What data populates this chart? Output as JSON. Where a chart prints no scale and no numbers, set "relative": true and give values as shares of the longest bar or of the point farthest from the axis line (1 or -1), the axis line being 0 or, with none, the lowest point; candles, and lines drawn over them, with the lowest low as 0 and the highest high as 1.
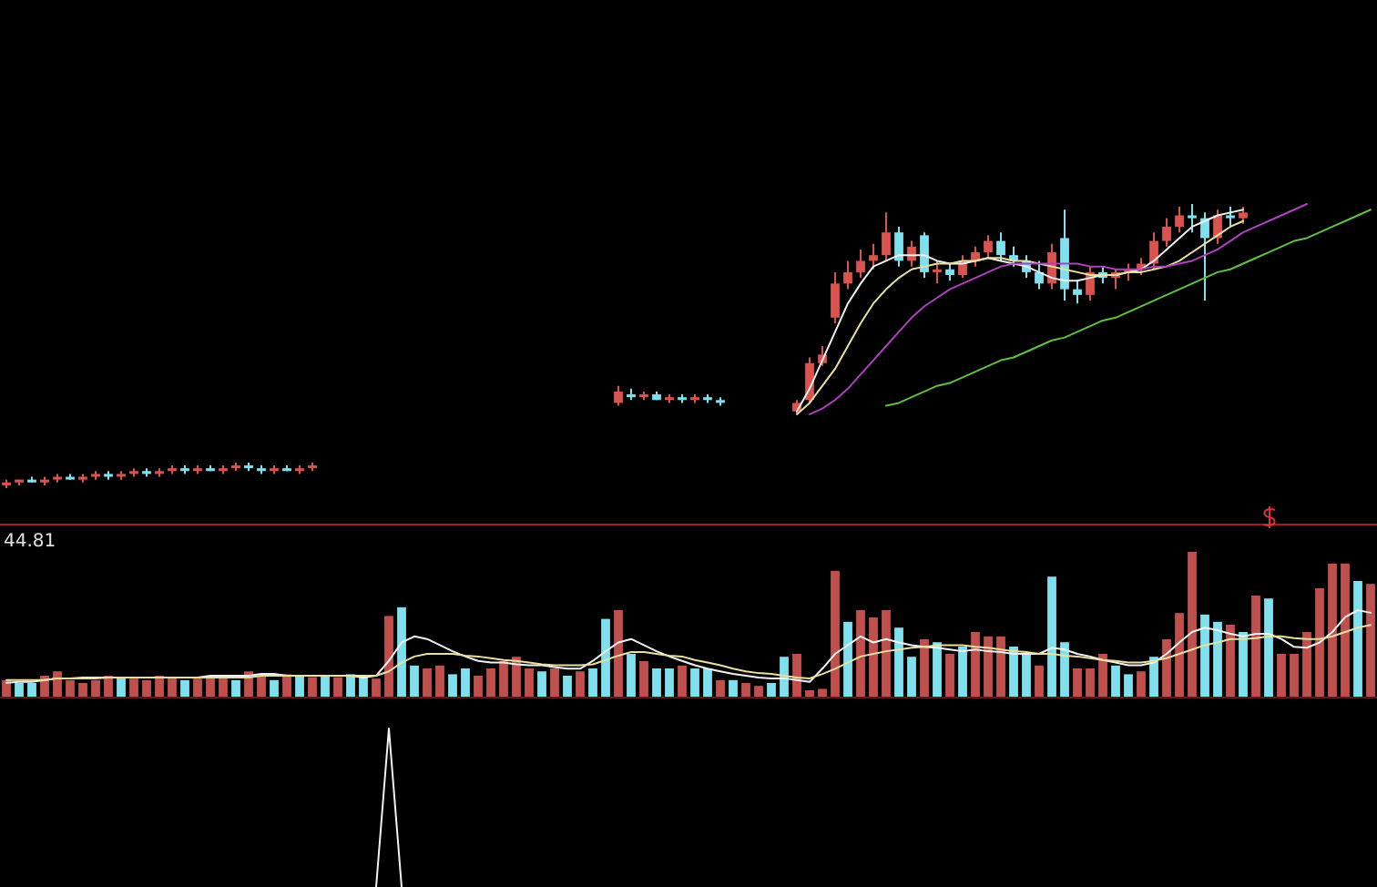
{
  "chart_data": [
    {
      "type": "candlestick",
      "relative": true,
      "categories": [
        null,
        null,
        null,
        null,
        null,
        null,
        null,
        null,
        null,
        null,
        null,
        null,
        null,
        null,
        null,
        null,
        null,
        null,
        null,
        null,
        null,
        null,
        null,
        null,
        null,
        null,
        null,
        null,
        null,
        null,
        null,
        null,
        null,
        null,
        null,
        null,
        null,
        null,
        null,
        null,
        null,
        null,
        null,
        null,
        null,
        null,
        null,
        null,
        null,
        null,
        null,
        null,
        null,
        null,
        null,
        null,
        null,
        null,
        null,
        null,
        null,
        null,
        null,
        null,
        null,
        null,
        null,
        null,
        null,
        null,
        null,
        null,
        null,
        null,
        null,
        null,
        null,
        null,
        null,
        null,
        null,
        null,
        null,
        null,
        null,
        null,
        null,
        null,
        null,
        null,
        null,
        null,
        null,
        null,
        null,
        null,
        null,
        null,
        null,
        null,
        null,
        null,
        null,
        null,
        null,
        null,
        null,
        null
      ],
      "ohlc": [
        [
          0.01,
          0.03,
          0,
          0.02
        ],
        [
          0.02,
          0.03,
          0.01,
          0.03
        ],
        [
          0.03,
          0.04,
          0.02,
          0.02
        ],
        [
          0.02,
          0.04,
          0.01,
          0.03
        ],
        [
          0.03,
          0.05,
          0.02,
          0.04
        ],
        [
          0.04,
          0.05,
          0.03,
          0.03
        ],
        [
          0.03,
          0.05,
          0.02,
          0.04
        ],
        [
          0.04,
          0.06,
          0.03,
          0.05
        ],
        [
          0.05,
          0.06,
          0.03,
          0.04
        ],
        [
          0.04,
          0.06,
          0.03,
          0.05
        ],
        [
          0.05,
          0.07,
          0.04,
          0.06
        ],
        [
          0.06,
          0.07,
          0.04,
          0.05
        ],
        [
          0.05,
          0.07,
          0.04,
          0.06
        ],
        [
          0.06,
          0.08,
          0.05,
          0.07
        ],
        [
          0.07,
          0.08,
          0.05,
          0.06
        ],
        [
          0.06,
          0.08,
          0.05,
          0.07
        ],
        [
          0.07,
          0.08,
          0.06,
          0.06
        ],
        [
          0.06,
          0.08,
          0.05,
          0.07
        ],
        [
          0.07,
          0.09,
          0.06,
          0.08
        ],
        [
          0.08,
          0.09,
          0.06,
          0.07
        ],
        [
          0.07,
          0.08,
          0.05,
          0.06
        ],
        [
          0.06,
          0.08,
          0.05,
          0.07
        ],
        [
          0.07,
          0.08,
          0.06,
          0.06
        ],
        [
          0.06,
          0.08,
          0.05,
          0.07
        ],
        [
          0.07,
          0.09,
          0.06,
          0.08
        ],
        null,
        null,
        null,
        null,
        null,
        null,
        null,
        null,
        null,
        null,
        null,
        null,
        null,
        null,
        null,
        null,
        null,
        null,
        null,
        null,
        null,
        null,
        null,
        [
          0.3,
          0.36,
          0.29,
          0.34
        ],
        [
          0.33,
          0.35,
          0.31,
          0.32
        ],
        [
          0.32,
          0.34,
          0.31,
          0.33
        ],
        [
          0.33,
          0.34,
          0.31,
          0.31
        ],
        [
          0.31,
          0.33,
          0.3,
          0.32
        ],
        [
          0.32,
          0.33,
          0.3,
          0.31
        ],
        [
          0.31,
          0.33,
          0.3,
          0.32
        ],
        [
          0.32,
          0.33,
          0.3,
          0.31
        ],
        [
          0.31,
          0.32,
          0.29,
          0.3
        ],
        null,
        null,
        null,
        null,
        null,
        [
          0.27,
          0.31,
          0.26,
          0.3
        ],
        [
          0.31,
          0.46,
          0.3,
          0.44
        ],
        [
          0.44,
          0.5,
          0.43,
          0.47
        ],
        [
          0.6,
          0.76,
          0.58,
          0.72
        ],
        [
          0.72,
          0.8,
          0.7,
          0.76
        ],
        [
          0.76,
          0.84,
          0.74,
          0.8
        ],
        [
          0.8,
          0.86,
          0.77,
          0.82
        ],
        [
          0.82,
          0.97,
          0.8,
          0.9
        ],
        [
          0.9,
          0.92,
          0.78,
          0.8
        ],
        [
          0.8,
          0.87,
          0.78,
          0.85
        ],
        [
          0.89,
          0.9,
          0.74,
          0.76
        ],
        [
          0.76,
          0.8,
          0.72,
          0.77
        ],
        [
          0.77,
          0.79,
          0.73,
          0.75
        ],
        [
          0.75,
          0.82,
          0.74,
          0.8
        ],
        [
          0.8,
          0.85,
          0.78,
          0.83
        ],
        [
          0.83,
          0.89,
          0.81,
          0.87
        ],
        [
          0.87,
          0.9,
          0.8,
          0.82
        ],
        [
          0.82,
          0.85,
          0.78,
          0.8
        ],
        [
          0.8,
          0.82,
          0.74,
          0.76
        ],
        [
          0.76,
          0.8,
          0.7,
          0.72
        ],
        [
          0.72,
          0.86,
          0.7,
          0.83
        ],
        [
          0.88,
          0.98,
          0.66,
          0.7
        ],
        [
          0.7,
          0.73,
          0.65,
          0.68
        ],
        [
          0.68,
          0.78,
          0.66,
          0.76
        ],
        [
          0.76,
          0.78,
          0.72,
          0.74
        ],
        [
          0.74,
          0.77,
          0.7,
          0.76
        ],
        [
          0.76,
          0.79,
          0.73,
          0.77
        ],
        [
          0.77,
          0.81,
          0.75,
          0.79
        ],
        [
          0.79,
          0.9,
          0.77,
          0.87
        ],
        [
          0.87,
          0.95,
          0.85,
          0.92
        ],
        [
          0.92,
          0.99,
          0.9,
          0.96
        ],
        [
          0.96,
          1,
          0.9,
          0.95
        ],
        [
          0.95,
          0.97,
          0.66,
          0.88
        ],
        [
          0.88,
          0.98,
          0.86,
          0.96
        ],
        [
          0.96,
          0.99,
          0.92,
          0.95
        ],
        [
          0.95,
          0.99,
          0.93,
          0.97
        ],
        null,
        null,
        null,
        null,
        null,
        null,
        null,
        null,
        null,
        null
      ],
      "series": [
        {
          "type": "line",
          "color": "#f2f2f2",
          "values": [
            null,
            null,
            null,
            null,
            null,
            null,
            null,
            null,
            null,
            null,
            null,
            null,
            null,
            null,
            null,
            null,
            null,
            null,
            null,
            null,
            null,
            null,
            null,
            null,
            null,
            null,
            null,
            null,
            null,
            null,
            null,
            null,
            null,
            null,
            null,
            null,
            null,
            null,
            null,
            null,
            null,
            null,
            null,
            null,
            null,
            null,
            null,
            null,
            null,
            null,
            null,
            null,
            null,
            null,
            null,
            null,
            null,
            null,
            null,
            null,
            null,
            null,
            0.27,
            0.35,
            0.45,
            0.55,
            0.65,
            0.72,
            0.78,
            0.8,
            0.82,
            0.82,
            0.82,
            0.8,
            0.79,
            0.79,
            0.8,
            0.81,
            0.8,
            0.79,
            0.78,
            0.76,
            0.74,
            0.73,
            0.73,
            0.74,
            0.75,
            0.75,
            0.76,
            0.77,
            0.8,
            0.84,
            0.88,
            0.92,
            0.94,
            0.96,
            0.97,
            0.98,
            null,
            null,
            null,
            null,
            null,
            null,
            null,
            null,
            null,
            null
          ]
        },
        {
          "type": "line",
          "color": "#e8e0a0",
          "values": [
            null,
            null,
            null,
            null,
            null,
            null,
            null,
            null,
            null,
            null,
            null,
            null,
            null,
            null,
            null,
            null,
            null,
            null,
            null,
            null,
            null,
            null,
            null,
            null,
            null,
            null,
            null,
            null,
            null,
            null,
            null,
            null,
            null,
            null,
            null,
            null,
            null,
            null,
            null,
            null,
            null,
            null,
            null,
            null,
            null,
            null,
            null,
            null,
            null,
            null,
            null,
            null,
            null,
            null,
            null,
            null,
            null,
            null,
            null,
            null,
            null,
            null,
            0.26,
            0.3,
            0.36,
            0.42,
            0.5,
            0.58,
            0.65,
            0.7,
            0.74,
            0.77,
            0.78,
            0.79,
            0.79,
            0.8,
            0.8,
            0.81,
            0.81,
            0.8,
            0.8,
            0.79,
            0.78,
            0.77,
            0.76,
            0.75,
            0.75,
            0.75,
            0.76,
            0.76,
            0.77,
            0.78,
            0.8,
            0.83,
            0.86,
            0.89,
            0.92,
            0.94,
            null,
            null,
            null,
            null,
            null,
            null,
            null,
            null,
            null,
            null
          ]
        },
        {
          "type": "line",
          "color": "#b040c0",
          "values": [
            null,
            null,
            null,
            null,
            null,
            null,
            null,
            null,
            null,
            null,
            null,
            null,
            null,
            null,
            null,
            null,
            null,
            null,
            null,
            null,
            null,
            null,
            null,
            null,
            null,
            null,
            null,
            null,
            null,
            null,
            null,
            null,
            null,
            null,
            null,
            null,
            null,
            null,
            null,
            null,
            null,
            null,
            null,
            null,
            null,
            null,
            null,
            null,
            null,
            null,
            null,
            null,
            null,
            null,
            null,
            null,
            null,
            null,
            null,
            null,
            null,
            null,
            null,
            0.26,
            0.28,
            0.31,
            0.35,
            0.4,
            0.45,
            0.5,
            0.55,
            0.6,
            0.64,
            0.67,
            0.7,
            0.72,
            0.74,
            0.76,
            0.78,
            0.79,
            0.79,
            0.79,
            0.79,
            0.79,
            0.79,
            0.78,
            0.78,
            0.77,
            0.77,
            0.77,
            0.78,
            0.78,
            0.79,
            0.8,
            0.82,
            0.84,
            0.87,
            0.9,
            0.92,
            0.94,
            0.96,
            0.98,
            1,
            null,
            null,
            null,
            null,
            null
          ]
        },
        {
          "type": "line",
          "color": "#60c040",
          "values": [
            null,
            null,
            null,
            null,
            null,
            null,
            null,
            null,
            null,
            null,
            null,
            null,
            null,
            null,
            null,
            null,
            null,
            null,
            null,
            null,
            null,
            null,
            null,
            null,
            null,
            null,
            null,
            null,
            null,
            null,
            null,
            null,
            null,
            null,
            null,
            null,
            null,
            null,
            null,
            null,
            null,
            null,
            null,
            null,
            null,
            null,
            null,
            null,
            null,
            null,
            null,
            null,
            null,
            null,
            null,
            null,
            null,
            null,
            null,
            null,
            null,
            null,
            null,
            null,
            null,
            null,
            null,
            null,
            null,
            0.29,
            0.3,
            0.32,
            0.34,
            0.36,
            0.37,
            0.39,
            0.41,
            0.43,
            0.45,
            0.46,
            0.48,
            0.5,
            0.52,
            0.53,
            0.55,
            0.57,
            0.59,
            0.6,
            0.62,
            0.64,
            0.66,
            0.68,
            0.7,
            0.72,
            0.74,
            0.76,
            0.77,
            0.79,
            0.81,
            0.83,
            0.85,
            0.87,
            0.88,
            0.9,
            0.92,
            0.94,
            0.96,
            0.98
          ]
        }
      ]
    },
    {
      "type": "bar",
      "relative": true,
      "annotations": [
        "44.81"
      ],
      "categories": [
        null,
        null,
        null,
        null,
        null,
        null,
        null,
        null,
        null,
        null,
        null,
        null,
        null,
        null,
        null,
        null,
        null,
        null,
        null,
        null,
        null,
        null,
        null,
        null,
        null,
        null,
        null,
        null,
        null,
        null,
        null,
        null,
        null,
        null,
        null,
        null,
        null,
        null,
        null,
        null,
        null,
        null,
        null,
        null,
        null,
        null,
        null,
        null,
        null,
        null,
        null,
        null,
        null,
        null,
        null,
        null,
        null,
        null,
        null,
        null,
        null,
        null,
        null,
        null,
        null,
        null,
        null,
        null,
        null,
        null,
        null,
        null,
        null,
        null,
        null,
        null,
        null,
        null,
        null,
        null,
        null,
        null,
        null,
        null,
        null,
        null,
        null,
        null,
        null,
        null,
        null,
        null,
        null,
        null,
        null,
        null,
        null,
        null,
        null,
        null,
        null,
        null,
        null,
        null,
        null,
        null,
        null,
        null
      ],
      "values": [
        0.12,
        0.1,
        0.1,
        0.15,
        0.18,
        0.12,
        0.1,
        0.12,
        0.15,
        0.14,
        0.13,
        0.12,
        0.15,
        0.14,
        0.12,
        0.13,
        0.14,
        0.15,
        0.12,
        0.18,
        0.16,
        0.12,
        0.16,
        0.15,
        0.14,
        0.15,
        0.14,
        0.16,
        0.14,
        0.13,
        0.56,
        0.62,
        0.22,
        0.2,
        0.22,
        0.16,
        0.2,
        0.15,
        0.2,
        0.25,
        0.28,
        0.2,
        0.18,
        0.2,
        0.15,
        0.18,
        0.2,
        0.54,
        0.6,
        0.3,
        0.25,
        0.2,
        0.2,
        0.22,
        0.2,
        0.2,
        0.12,
        0.12,
        0.1,
        0.08,
        0.1,
        0.28,
        0.3,
        0.05,
        0.06,
        0.87,
        0.52,
        0.6,
        0.55,
        0.6,
        0.48,
        0.28,
        0.4,
        0.38,
        0.3,
        0.35,
        0.45,
        0.42,
        0.42,
        0.35,
        0.3,
        0.22,
        0.83,
        0.38,
        0.2,
        0.2,
        0.3,
        0.22,
        0.16,
        0.18,
        0.28,
        0.4,
        0.58,
        1,
        0.57,
        0.52,
        0.5,
        0.45,
        0.7,
        0.68,
        0.3,
        0.3,
        0.45,
        0.75,
        0.92,
        0.92,
        0.8,
        0.78
      ],
      "colors": [
        "#c0504d",
        "#80e0ee",
        "#80e0ee",
        "#c0504d",
        "#c0504d",
        "#c0504d",
        "#c0504d",
        "#c0504d",
        "#c0504d",
        "#80e0ee",
        "#c0504d",
        "#c0504d",
        "#c0504d",
        "#c0504d",
        "#80e0ee",
        "#c0504d",
        "#c0504d",
        "#c0504d",
        "#80e0ee",
        "#c0504d",
        "#c0504d",
        "#80e0ee",
        "#c0504d",
        "#80e0ee",
        "#c0504d",
        "#80e0ee",
        "#c0504d",
        "#80e0ee",
        "#80e0ee",
        "#c0504d",
        "#c0504d",
        "#80e0ee",
        "#80e0ee",
        "#c0504d",
        "#c0504d",
        "#80e0ee",
        "#80e0ee",
        "#c0504d",
        "#c0504d",
        "#c0504d",
        "#c0504d",
        "#c0504d",
        "#80e0ee",
        "#c0504d",
        "#80e0ee",
        "#c0504d",
        "#80e0ee",
        "#80e0ee",
        "#c0504d",
        "#80e0ee",
        "#c0504d",
        "#80e0ee",
        "#80e0ee",
        "#c0504d",
        "#80e0ee",
        "#80e0ee",
        "#c0504d",
        "#80e0ee",
        "#c0504d",
        "#c0504d",
        "#80e0ee",
        "#80e0ee",
        "#c0504d",
        "#c0504d",
        "#c0504d",
        "#c0504d",
        "#80e0ee",
        "#c0504d",
        "#c0504d",
        "#c0504d",
        "#80e0ee",
        "#80e0ee",
        "#c0504d",
        "#80e0ee",
        "#c0504d",
        "#80e0ee",
        "#c0504d",
        "#c0504d",
        "#c0504d",
        "#80e0ee",
        "#80e0ee",
        "#c0504d",
        "#80e0ee",
        "#80e0ee",
        "#c0504d",
        "#c0504d",
        "#c0504d",
        "#80e0ee",
        "#80e0ee",
        "#c0504d",
        "#80e0ee",
        "#c0504d",
        "#c0504d",
        "#c0504d",
        "#80e0ee",
        "#80e0ee",
        "#c0504d",
        "#80e0ee",
        "#c0504d",
        "#80e0ee",
        "#c0504d",
        "#c0504d",
        "#c0504d",
        "#c0504d",
        "#c0504d",
        "#c0504d",
        "#80e0ee",
        "#c0504d"
      ]
    },
    {
      "type": "line",
      "relative": true,
      "categories": [
        null,
        null,
        null,
        null,
        null,
        null,
        null,
        null,
        null,
        null,
        null,
        null,
        null,
        null,
        null,
        null,
        null,
        null,
        null,
        null,
        null,
        null,
        null,
        null,
        null,
        null,
        null,
        null,
        null,
        null,
        null,
        null,
        null,
        null,
        null,
        null,
        null,
        null,
        null,
        null,
        null,
        null,
        null,
        null,
        null,
        null,
        null,
        null,
        null,
        null,
        null,
        null,
        null,
        null,
        null,
        null,
        null,
        null,
        null,
        null,
        null,
        null,
        null,
        null,
        null,
        null,
        null,
        null,
        null,
        null,
        null,
        null,
        null,
        null,
        null,
        null,
        null,
        null,
        null,
        null,
        null,
        null,
        null,
        null,
        null,
        null,
        null,
        null,
        null,
        null,
        null,
        null,
        null,
        null,
        null,
        null,
        null,
        null,
        null,
        null,
        null,
        null,
        null,
        null,
        null,
        null,
        null,
        null
      ],
      "series": [
        {
          "color": "#f2f2f2",
          "values": [
            0.17,
            0.18,
            0.18,
            0.2,
            0.22,
            0.22,
            0.23,
            0.23,
            0.23,
            0.23,
            0.23,
            0.23,
            0.23,
            0.23,
            0.23,
            0.23,
            0.25,
            0.25,
            0.25,
            0.25,
            0.27,
            0.27,
            0.25,
            0.25,
            0.25,
            0.25,
            0.25,
            0.25,
            0.23,
            0.25,
            0.42,
            0.63,
            0.7,
            0.67,
            0.6,
            0.53,
            0.47,
            0.42,
            0.4,
            0.4,
            0.38,
            0.37,
            0.37,
            0.35,
            0.33,
            0.33,
            0.42,
            0.53,
            0.63,
            0.67,
            0.6,
            0.53,
            0.47,
            0.42,
            0.37,
            0.33,
            0.3,
            0.27,
            0.25,
            0.23,
            0.22,
            0.22,
            0.2,
            0.18,
            0.33,
            0.5,
            0.6,
            0.7,
            0.63,
            0.67,
            0.63,
            0.6,
            0.58,
            0.57,
            0.55,
            0.53,
            0.55,
            0.53,
            0.52,
            0.5,
            0.5,
            0.5,
            0.57,
            0.55,
            0.5,
            0.47,
            0.43,
            0.4,
            0.37,
            0.37,
            0.4,
            0.5,
            0.63,
            0.75,
            0.8,
            0.77,
            0.73,
            0.7,
            0.73,
            0.73,
            0.67,
            0.58,
            0.57,
            0.63,
            0.75,
            0.92,
            1,
            0.97
          ]
        },
        {
          "color": "#e8e0a0",
          "values": [
            0.2,
            0.2,
            0.2,
            0.2,
            0.22,
            0.22,
            0.22,
            0.22,
            0.23,
            0.23,
            0.23,
            0.23,
            0.23,
            0.23,
            0.23,
            0.23,
            0.23,
            0.23,
            0.23,
            0.23,
            0.25,
            0.25,
            0.25,
            0.25,
            0.25,
            0.25,
            0.25,
            0.25,
            0.25,
            0.25,
            0.3,
            0.4,
            0.47,
            0.5,
            0.5,
            0.5,
            0.48,
            0.47,
            0.45,
            0.43,
            0.42,
            0.4,
            0.38,
            0.37,
            0.37,
            0.37,
            0.38,
            0.43,
            0.48,
            0.52,
            0.52,
            0.5,
            0.48,
            0.47,
            0.43,
            0.4,
            0.37,
            0.33,
            0.3,
            0.28,
            0.27,
            0.25,
            0.23,
            0.22,
            0.27,
            0.33,
            0.4,
            0.47,
            0.5,
            0.53,
            0.55,
            0.57,
            0.58,
            0.6,
            0.6,
            0.6,
            0.58,
            0.57,
            0.55,
            0.53,
            0.52,
            0.5,
            0.5,
            0.48,
            0.47,
            0.45,
            0.43,
            0.42,
            0.4,
            0.4,
            0.42,
            0.45,
            0.5,
            0.55,
            0.6,
            0.63,
            0.67,
            0.67,
            0.68,
            0.7,
            0.7,
            0.68,
            0.67,
            0.67,
            0.7,
            0.75,
            0.8,
            0.83
          ]
        }
      ]
    },
    {
      "type": "line",
      "relative": true,
      "color": "#f2f2f2",
      "categories": [
        null,
        null,
        null,
        null,
        null,
        null,
        null,
        null,
        null,
        null,
        null,
        null,
        null,
        null,
        null,
        null,
        null,
        null,
        null,
        null,
        null,
        null,
        null,
        null,
        null,
        null,
        null,
        null,
        null,
        null,
        null,
        null,
        null,
        null,
        null,
        null,
        null,
        null,
        null,
        null,
        null,
        null,
        null,
        null,
        null,
        null,
        null,
        null,
        null,
        null,
        null,
        null,
        null,
        null,
        null,
        null,
        null,
        null,
        null,
        null,
        null,
        null,
        null,
        null,
        null,
        null,
        null,
        null,
        null,
        null,
        null,
        null,
        null,
        null,
        null,
        null,
        null,
        null,
        null,
        null,
        null,
        null,
        null,
        null,
        null,
        null,
        null,
        null,
        null,
        null,
        null,
        null,
        null,
        null,
        null,
        null,
        null,
        null,
        null,
        null,
        null,
        null,
        null,
        null,
        null,
        null,
        null,
        null
      ],
      "values": [
        null,
        null,
        null,
        null,
        null,
        null,
        null,
        null,
        null,
        null,
        null,
        null,
        null,
        null,
        null,
        null,
        null,
        null,
        null,
        null,
        null,
        null,
        null,
        null,
        null,
        null,
        null,
        null,
        null,
        0,
        1,
        0,
        null,
        null,
        null,
        null,
        null,
        null,
        null,
        null,
        null,
        null,
        null,
        null,
        null,
        null,
        null,
        null,
        null,
        null,
        null,
        null,
        null,
        null,
        null,
        null,
        null,
        null,
        null,
        null,
        null,
        null,
        null,
        null,
        null,
        null,
        null,
        null,
        null,
        null,
        null,
        null,
        null,
        null,
        null,
        null,
        null,
        null,
        null,
        null,
        null,
        null,
        null,
        null,
        null,
        null,
        null,
        null,
        null,
        null,
        null,
        null,
        null,
        null,
        null,
        null,
        null,
        null,
        null,
        null,
        null,
        null,
        null,
        null,
        null,
        null,
        null,
        null
      ]
    }
  ]
}
